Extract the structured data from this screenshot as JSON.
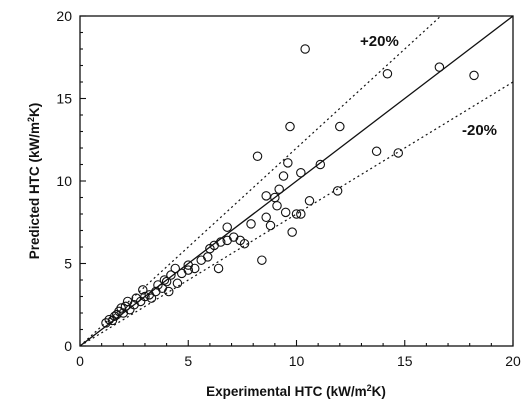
{
  "chart_data": {
    "type": "scatter",
    "xlabel": {
      "prefix": "Experimental HTC (kW/m",
      "sup": "2",
      "suffix": "K)"
    },
    "ylabel": {
      "prefix": "Predicted HTC (kW/m",
      "sup": "2",
      "suffix": "K)"
    },
    "xlim": [
      0,
      20
    ],
    "ylim": [
      0,
      20
    ],
    "xticks": [
      0,
      5,
      10,
      15,
      20
    ],
    "yticks": [
      0,
      5,
      10,
      15,
      20
    ],
    "grid": false,
    "marker": "open-circle",
    "reference_lines": [
      {
        "label": "",
        "slope": 1.0,
        "style": "solid"
      },
      {
        "label": "+20%",
        "slope": 1.2,
        "style": "dotted"
      },
      {
        "label": "-20%",
        "slope": 0.8,
        "style": "dotted"
      }
    ],
    "points": [
      [
        1.2,
        1.4
      ],
      [
        1.35,
        1.6
      ],
      [
        1.5,
        1.55
      ],
      [
        1.6,
        1.8
      ],
      [
        1.7,
        1.9
      ],
      [
        1.8,
        2.1
      ],
      [
        1.9,
        2.3
      ],
      [
        2.0,
        2.0
      ],
      [
        2.1,
        2.4
      ],
      [
        2.2,
        2.7
      ],
      [
        2.3,
        2.2
      ],
      [
        2.5,
        2.5
      ],
      [
        2.6,
        2.9
      ],
      [
        2.8,
        2.7
      ],
      [
        2.9,
        3.4
      ],
      [
        3.0,
        3.0
      ],
      [
        3.2,
        3.1
      ],
      [
        3.3,
        2.9
      ],
      [
        3.5,
        3.3
      ],
      [
        3.6,
        3.7
      ],
      [
        3.8,
        3.5
      ],
      [
        3.9,
        4.0
      ],
      [
        4.0,
        3.9
      ],
      [
        4.1,
        3.3
      ],
      [
        4.2,
        4.3
      ],
      [
        4.4,
        4.7
      ],
      [
        4.5,
        3.8
      ],
      [
        4.7,
        4.4
      ],
      [
        5.0,
        4.6
      ],
      [
        5.0,
        4.9
      ],
      [
        5.3,
        4.7
      ],
      [
        5.6,
        5.2
      ],
      [
        5.9,
        5.4
      ],
      [
        6.0,
        5.9
      ],
      [
        6.2,
        6.1
      ],
      [
        6.4,
        4.7
      ],
      [
        6.5,
        6.3
      ],
      [
        6.8,
        6.4
      ],
      [
        6.8,
        7.2
      ],
      [
        7.1,
        6.6
      ],
      [
        7.4,
        6.4
      ],
      [
        7.6,
        6.2
      ],
      [
        7.9,
        7.4
      ],
      [
        8.2,
        11.5
      ],
      [
        8.4,
        5.2
      ],
      [
        8.6,
        7.8
      ],
      [
        8.6,
        9.1
      ],
      [
        8.8,
        7.3
      ],
      [
        9.0,
        9.0
      ],
      [
        9.1,
        8.5
      ],
      [
        9.2,
        9.5
      ],
      [
        9.4,
        10.3
      ],
      [
        9.5,
        8.1
      ],
      [
        9.6,
        11.1
      ],
      [
        9.7,
        13.3
      ],
      [
        9.8,
        6.9
      ],
      [
        10.0,
        8.0
      ],
      [
        10.2,
        10.5
      ],
      [
        10.2,
        8.0
      ],
      [
        10.4,
        18.0
      ],
      [
        10.6,
        8.8
      ],
      [
        11.1,
        11.0
      ],
      [
        11.9,
        9.4
      ],
      [
        12.0,
        13.3
      ],
      [
        13.7,
        11.8
      ],
      [
        14.2,
        16.5
      ],
      [
        14.7,
        11.7
      ],
      [
        16.6,
        16.9
      ],
      [
        18.2,
        16.4
      ]
    ]
  }
}
